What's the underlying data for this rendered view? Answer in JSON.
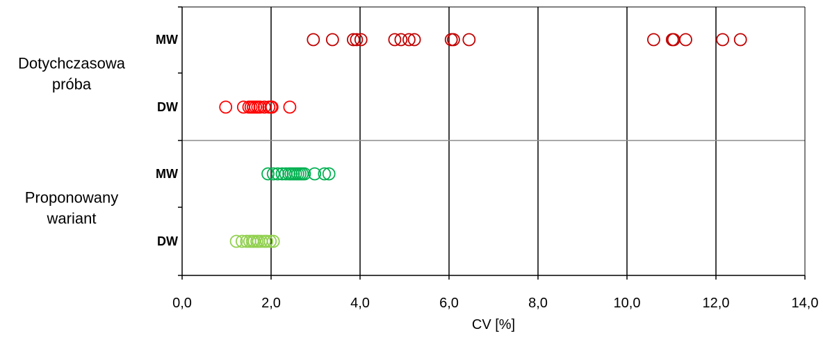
{
  "chart_data": {
    "type": "scatter",
    "xlabel": "CV [%]",
    "xlim": [
      0,
      14
    ],
    "x_ticks": [
      0,
      2,
      4,
      6,
      8,
      10,
      12,
      14
    ],
    "x_tick_labels": [
      "0,0",
      "2,0",
      "4,0",
      "6,0",
      "8,0",
      "10,0",
      "12,0",
      "14,0"
    ],
    "grid_x": true,
    "marker": "open-circle",
    "groups": [
      {
        "label": "Dotychczasowa próba",
        "lines": [
          "Dotychczasowa",
          "próba"
        ]
      },
      {
        "label": "Proponowany wariant",
        "lines": [
          "Proponowany",
          "wariant"
        ]
      }
    ],
    "rows": [
      {
        "label": "MW",
        "group": 0,
        "color": "#c00000",
        "values": [
          2.95,
          3.38,
          3.85,
          3.92,
          4.02,
          4.78,
          4.92,
          5.1,
          5.22,
          6.05,
          6.1,
          6.45,
          10.6,
          11.02,
          11.05,
          11.32,
          12.15,
          12.55
        ]
      },
      {
        "label": "DW",
        "group": 0,
        "color": "#ff0000",
        "values": [
          0.98,
          1.38,
          1.5,
          1.55,
          1.6,
          1.65,
          1.7,
          1.75,
          1.85,
          1.95,
          2.0,
          2.02,
          2.42
        ]
      },
      {
        "label": "MW",
        "group": 1,
        "color": "#00b050",
        "values": [
          1.93,
          2.05,
          2.15,
          2.25,
          2.33,
          2.4,
          2.45,
          2.5,
          2.55,
          2.6,
          2.65,
          2.7,
          2.75,
          2.98,
          3.2,
          3.3
        ]
      },
      {
        "label": "DW",
        "group": 1,
        "color": "#92d050",
        "values": [
          1.22,
          1.35,
          1.45,
          1.52,
          1.58,
          1.62,
          1.68,
          1.72,
          1.78,
          1.85,
          1.9,
          1.98,
          2.05
        ]
      }
    ]
  }
}
